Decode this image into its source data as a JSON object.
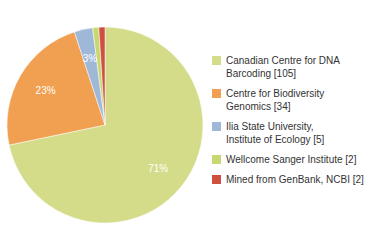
{
  "chart_data": {
    "type": "pie",
    "categories": [
      "Canadian Centre for DNA\nBarcoding [105]",
      "Centre for Biodiversity\nGenomics [34]",
      "Ilia State University,\nInstitute of Ecology [5]",
      "Wellcome Sanger Institute [2]",
      "Mined from GenBank, NCBI [2]"
    ],
    "values": [
      71,
      23,
      3,
      1,
      1
    ],
    "value_labels": [
      "71%",
      "23%",
      "3%",
      null,
      null
    ],
    "colors": [
      "#d4dc8a",
      "#f0a050",
      "#a0b8d8",
      "#c8d870",
      "#d05040"
    ],
    "data_labels": true
  }
}
